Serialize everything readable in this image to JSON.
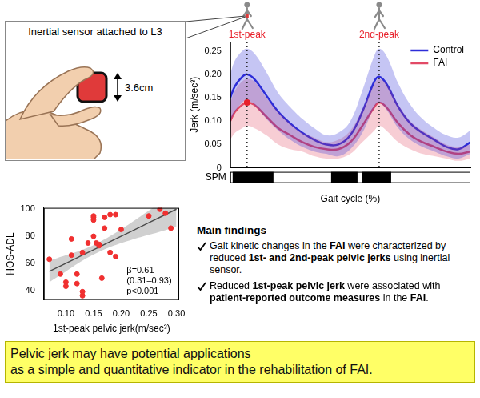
{
  "sensor_panel": {
    "title": "Inertial sensor attached to L3",
    "size_label": "3.6cm"
  },
  "chart_data": [
    {
      "type": "line",
      "y_label": "Jerk (m/sec³)",
      "x_label": "Gait cycle (%)",
      "x": [
        0,
        2,
        5,
        7,
        10,
        15,
        20,
        25,
        30,
        35,
        40,
        45,
        50,
        55,
        60,
        62,
        65,
        70,
        75,
        80,
        85,
        90,
        95,
        100
      ],
      "series": [
        {
          "name": "Control",
          "color": "#2d2dd8",
          "values": [
            0.15,
            0.175,
            0.195,
            0.2,
            0.19,
            0.155,
            0.12,
            0.095,
            0.075,
            0.06,
            0.05,
            0.05,
            0.07,
            0.12,
            0.185,
            0.195,
            0.18,
            0.13,
            0.095,
            0.075,
            0.06,
            0.045,
            0.04,
            0.055
          ],
          "upper": [
            0.2,
            0.23,
            0.25,
            0.255,
            0.245,
            0.205,
            0.16,
            0.13,
            0.105,
            0.085,
            0.07,
            0.075,
            0.1,
            0.165,
            0.24,
            0.255,
            0.24,
            0.18,
            0.135,
            0.105,
            0.085,
            0.07,
            0.065,
            0.08
          ],
          "lower": [
            0.1,
            0.12,
            0.14,
            0.145,
            0.135,
            0.105,
            0.08,
            0.06,
            0.045,
            0.035,
            0.03,
            0.025,
            0.04,
            0.075,
            0.13,
            0.14,
            0.125,
            0.085,
            0.06,
            0.045,
            0.035,
            0.025,
            0.02,
            0.03
          ]
        },
        {
          "name": "FAI",
          "color": "#e24a66",
          "values": [
            0.1,
            0.12,
            0.135,
            0.14,
            0.135,
            0.11,
            0.085,
            0.07,
            0.055,
            0.045,
            0.04,
            0.04,
            0.055,
            0.09,
            0.13,
            0.14,
            0.13,
            0.095,
            0.07,
            0.055,
            0.045,
            0.035,
            0.03,
            0.035
          ],
          "upper": [
            0.14,
            0.165,
            0.185,
            0.19,
            0.185,
            0.15,
            0.12,
            0.095,
            0.075,
            0.065,
            0.055,
            0.06,
            0.08,
            0.125,
            0.18,
            0.19,
            0.18,
            0.135,
            0.1,
            0.08,
            0.065,
            0.05,
            0.045,
            0.05
          ],
          "lower": [
            0.06,
            0.075,
            0.085,
            0.09,
            0.085,
            0.07,
            0.05,
            0.04,
            0.035,
            0.025,
            0.02,
            0.02,
            0.03,
            0.055,
            0.08,
            0.09,
            0.08,
            0.055,
            0.04,
            0.03,
            0.025,
            0.02,
            0.015,
            0.02
          ]
        }
      ],
      "xlim": [
        0,
        100
      ],
      "ylim": [
        0,
        0.27
      ],
      "yticks": [
        0,
        0.05,
        {
          "value": 0.1,
          "label": "0.10"
        },
        0.15,
        {
          "value": 0.2,
          "label": "0.20"
        },
        0.25
      ],
      "tick_labels": "y",
      "grid": false,
      "legend": "upper right",
      "annotations": [
        {
          "text": "1st-peak",
          "x": 7,
          "color": "#e8202a",
          "points": [
            [
              7,
              0.14
            ]
          ]
        },
        {
          "text": "2nd-peak",
          "x": 62,
          "color": "#e8202a"
        }
      ],
      "spm": {
        "label": "SPM",
        "segments": [
          [
            1,
            18
          ],
          [
            42,
            53
          ],
          [
            55,
            67
          ]
        ]
      }
    },
    {
      "type": "scatter",
      "x_label": "1st-peak pelvic jerk(m/sec³)",
      "y_label": "HOS-ADL",
      "series": [
        {
          "type": "scatter",
          "color": "#f03030",
          "x": [
            0.07,
            0.09,
            0.1,
            0.1,
            0.11,
            0.11,
            0.12,
            0.12,
            0.13,
            0.13,
            0.13,
            0.14,
            0.15,
            0.15,
            0.15,
            0.15,
            0.155,
            0.16,
            0.16,
            0.165,
            0.17,
            0.17,
            0.18,
            0.18,
            0.19,
            0.19,
            0.2,
            0.25,
            0.27,
            0.28,
            0.29
          ],
          "values": [
            63,
            52,
            46,
            43,
            66,
            78,
            45,
            52,
            36,
            39,
            68,
            75,
            80,
            94,
            95,
            92,
            75,
            74,
            73,
            49,
            94,
            86,
            96,
            68,
            65,
            96,
            85,
            95,
            100,
            97,
            86
          ]
        },
        {
          "type": "line",
          "color": "#333333",
          "x": [
            0.07,
            0.1,
            0.13,
            0.16,
            0.19,
            0.22,
            0.25,
            0.28,
            0.3
          ],
          "values": [
            54,
            60,
            66,
            72,
            78,
            84,
            90,
            96,
            100
          ],
          "upper": [
            62,
            66,
            70,
            75.5,
            82.5,
            90.5,
            99,
            107.5,
            113
          ],
          "lower": [
            46,
            54,
            62,
            68.5,
            73.5,
            77.5,
            81,
            84.5,
            87
          ]
        }
      ],
      "xlim": [
        0.06,
        0.305
      ],
      "xticks": [
        {
          "value": 0.1,
          "label": "0.10"
        },
        0.15,
        {
          "value": 0.2,
          "label": "0.20"
        },
        0.25,
        {
          "value": 0.3,
          "label": "0.30"
        }
      ],
      "ylim": [
        33,
        101
      ],
      "yticks": [
        40,
        60,
        80,
        100
      ],
      "grid": false,
      "annotations": [
        {
          "text": [
            "β=0.61",
            "(0.31–0.93)",
            "p<0.001"
          ],
          "x": 0.21,
          "y": 58
        }
      ]
    }
  ],
  "main_findings": {
    "title": "Main findings",
    "items": [
      [
        "Gait kinetic changes in the ",
        "FAI",
        " were characterized by reduced ",
        "1st- and 2nd-peak pelvic jerks",
        " using inertial sensor."
      ],
      [
        "Reduced ",
        "1st-peak pelvic jerk",
        " were associated with ",
        "patient-reported outcome measures",
        " in the ",
        "FAI",
        "."
      ]
    ]
  },
  "conclusion": [
    "Pelvic jerk may have potential applications",
    "as a simple and quantitative indicator in the rehabilitation of FAI."
  ]
}
